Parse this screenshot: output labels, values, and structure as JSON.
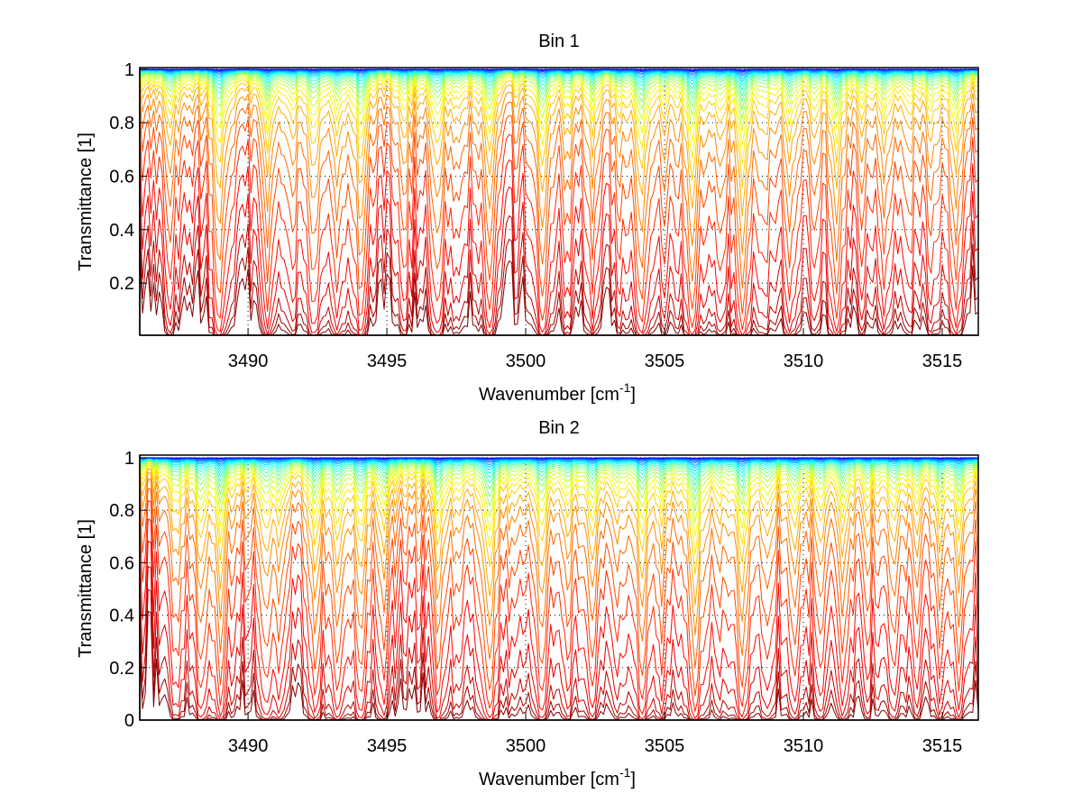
{
  "figure": {
    "background": "#ffffff"
  },
  "chart_data": [
    {
      "type": "line",
      "title": "Bin 1",
      "xlabel": "Wavenumber [cm",
      "xlabel_sup": "-1",
      "xlabel_end": "]",
      "ylabel": "Transmittance [1]",
      "xlim": [
        3486.1,
        3516.3
      ],
      "ylim": [
        0.005,
        1.006
      ],
      "xticks": [
        3490,
        3495,
        3500,
        3505,
        3510,
        3515
      ],
      "xtick_labels": [
        "3490",
        "3495",
        "3500",
        "3505",
        "3510",
        "3515"
      ],
      "yticks": [
        0.2,
        0.4,
        0.6,
        0.8,
        1
      ],
      "ytick_labels": [
        "0.2",
        "0.4",
        "0.6",
        "0.8",
        "1"
      ],
      "grid": true,
      "colormap": "jet",
      "n_series": 28,
      "x_step": 0.1,
      "series_baseline_transmittance": [
        1.0,
        0.999,
        0.998,
        0.997,
        0.995,
        0.993,
        0.99,
        0.987,
        0.983,
        0.978,
        0.972,
        0.965,
        0.956,
        0.945,
        0.93,
        0.91,
        0.885,
        0.85,
        0.8,
        0.72,
        0.62,
        0.5,
        0.36,
        0.22,
        0.12,
        0.055,
        0.025,
        0.01
      ],
      "absorption_lines": [
        {
          "center": 3487.2,
          "strength": 0.9
        },
        {
          "center": 3488.95,
          "strength": 1.8
        },
        {
          "center": 3490.7,
          "strength": 1.3
        },
        {
          "center": 3491.6,
          "strength": 0.6
        },
        {
          "center": 3492.35,
          "strength": 1.4
        },
        {
          "center": 3493.2,
          "strength": 0.9
        },
        {
          "center": 3494.05,
          "strength": 1.5
        },
        {
          "center": 3495.6,
          "strength": 0.8
        },
        {
          "center": 3496.8,
          "strength": 1.3
        },
        {
          "center": 3497.6,
          "strength": 0.5
        },
        {
          "center": 3498.7,
          "strength": 1.3
        },
        {
          "center": 3500.6,
          "strength": 1.6
        },
        {
          "center": 3501.5,
          "strength": 0.6
        },
        {
          "center": 3502.4,
          "strength": 0.9
        },
        {
          "center": 3503.4,
          "strength": 0.4
        },
        {
          "center": 3504.16,
          "strength": 1.9
        },
        {
          "center": 3505.0,
          "strength": 0.6
        },
        {
          "center": 3506.0,
          "strength": 2.0
        },
        {
          "center": 3507.0,
          "strength": 0.5
        },
        {
          "center": 3507.8,
          "strength": 2.2
        },
        {
          "center": 3508.6,
          "strength": 0.6
        },
        {
          "center": 3509.5,
          "strength": 1.1
        },
        {
          "center": 3510.4,
          "strength": 0.5
        },
        {
          "center": 3511.2,
          "strength": 1.6
        },
        {
          "center": 3512.1,
          "strength": 0.5
        },
        {
          "center": 3512.9,
          "strength": 0.9
        },
        {
          "center": 3513.8,
          "strength": 0.5
        },
        {
          "center": 3514.6,
          "strength": 0.8
        },
        {
          "center": 3515.5,
          "strength": 1.3
        }
      ]
    },
    {
      "type": "line",
      "title": "Bin 2",
      "xlabel": "Wavenumber [cm",
      "xlabel_sup": "-1",
      "xlabel_end": "]",
      "ylabel": "Transmittance [1]",
      "xlim": [
        3486.1,
        3516.3
      ],
      "ylim": [
        0,
        1.01
      ],
      "xticks": [
        3490,
        3495,
        3500,
        3505,
        3510,
        3515
      ],
      "xtick_labels": [
        "3490",
        "3495",
        "3500",
        "3505",
        "3510",
        "3515"
      ],
      "yticks": [
        0,
        0.2,
        0.4,
        0.6,
        0.8,
        1
      ],
      "ytick_labels": [
        "0",
        "0.2",
        "0.4",
        "0.6",
        "0.8",
        "1"
      ],
      "grid": true,
      "colormap": "jet",
      "n_series": 28,
      "x_step": 0.1,
      "series_baseline_transmittance": [
        1.0,
        0.999,
        0.998,
        0.996,
        0.994,
        0.991,
        0.988,
        0.984,
        0.979,
        0.973,
        0.966,
        0.957,
        0.946,
        0.932,
        0.915,
        0.893,
        0.865,
        0.83,
        0.77,
        0.7,
        0.6,
        0.47,
        0.34,
        0.2,
        0.1,
        0.04,
        0.015,
        0.005
      ],
      "absorption_lines": [
        {
          "center": 3487.4,
          "strength": 0.7
        },
        {
          "center": 3488.3,
          "strength": 1.1
        },
        {
          "center": 3489.0,
          "strength": 1.5
        },
        {
          "center": 3490.6,
          "strength": 1.0
        },
        {
          "center": 3491.1,
          "strength": 0.7
        },
        {
          "center": 3492.4,
          "strength": 1.2
        },
        {
          "center": 3493.2,
          "strength": 1.1
        },
        {
          "center": 3494.05,
          "strength": 1.2
        },
        {
          "center": 3494.9,
          "strength": 0.9
        },
        {
          "center": 3496.85,
          "strength": 1.3
        },
        {
          "center": 3497.6,
          "strength": 0.5
        },
        {
          "center": 3498.7,
          "strength": 1.9
        },
        {
          "center": 3499.6,
          "strength": 0.4
        },
        {
          "center": 3500.6,
          "strength": 1.3
        },
        {
          "center": 3501.5,
          "strength": 0.8
        },
        {
          "center": 3502.4,
          "strength": 1.0
        },
        {
          "center": 3503.3,
          "strength": 0.5
        },
        {
          "center": 3504.2,
          "strength": 1.4
        },
        {
          "center": 3504.9,
          "strength": 0.8
        },
        {
          "center": 3506.1,
          "strength": 2.0
        },
        {
          "center": 3507.0,
          "strength": 0.5
        },
        {
          "center": 3507.8,
          "strength": 1.7
        },
        {
          "center": 3508.7,
          "strength": 0.6
        },
        {
          "center": 3509.7,
          "strength": 1.0
        },
        {
          "center": 3510.6,
          "strength": 0.7
        },
        {
          "center": 3511.4,
          "strength": 1.0
        },
        {
          "center": 3512.3,
          "strength": 0.5
        },
        {
          "center": 3513.25,
          "strength": 0.9
        },
        {
          "center": 3514.1,
          "strength": 0.5
        },
        {
          "center": 3514.9,
          "strength": 0.8
        },
        {
          "center": 3515.6,
          "strength": 1.2
        }
      ]
    }
  ]
}
